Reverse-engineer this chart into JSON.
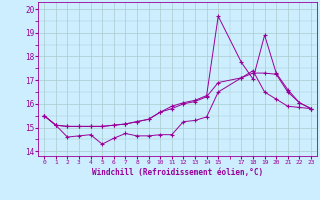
{
  "xlabel": "Windchill (Refroidissement éolien,°C)",
  "bg_color": "#cceeff",
  "grid_color": "#aacccc",
  "line_color": "#990099",
  "x_ticks": [
    0,
    1,
    2,
    3,
    4,
    5,
    6,
    7,
    8,
    9,
    10,
    11,
    12,
    13,
    14,
    15,
    17,
    18,
    19,
    20,
    21,
    22,
    23
  ],
  "x_tick_labels": [
    "0",
    "1",
    "2",
    "3",
    "4",
    "5",
    "6",
    "7",
    "8",
    "9",
    "10",
    "11",
    "12",
    "13",
    "14",
    "15",
    "17",
    "18",
    "19",
    "20",
    "21",
    "22",
    "23"
  ],
  "ylim": [
    13.8,
    20.3
  ],
  "yticks": [
    14,
    15,
    16,
    17,
    18,
    19,
    20
  ],
  "xlim": [
    -0.5,
    23.5
  ],
  "series": [
    {
      "x": [
        0,
        1,
        2,
        3,
        4,
        5,
        6,
        7,
        8,
        9,
        10,
        11,
        12,
        13,
        14,
        15,
        17,
        18,
        19,
        20,
        21,
        22,
        23
      ],
      "y": [
        15.5,
        15.1,
        14.6,
        14.65,
        14.7,
        14.3,
        14.55,
        14.75,
        14.65,
        14.65,
        14.7,
        14.7,
        15.25,
        15.3,
        15.45,
        16.5,
        17.1,
        17.4,
        16.5,
        16.2,
        15.9,
        15.85,
        15.8
      ]
    },
    {
      "x": [
        0,
        1,
        2,
        3,
        4,
        5,
        6,
        7,
        8,
        9,
        10,
        11,
        12,
        13,
        14,
        15,
        17,
        18,
        19,
        20,
        21,
        22,
        23
      ],
      "y": [
        15.5,
        15.1,
        15.05,
        15.05,
        15.05,
        15.05,
        15.1,
        15.15,
        15.25,
        15.35,
        15.65,
        15.8,
        16.0,
        16.1,
        16.3,
        16.9,
        17.1,
        17.3,
        17.3,
        17.25,
        16.5,
        16.05,
        15.8
      ]
    },
    {
      "x": [
        0,
        1,
        2,
        3,
        4,
        5,
        6,
        7,
        8,
        9,
        10,
        11,
        12,
        13,
        14,
        15,
        17,
        18,
        19,
        20,
        21,
        22,
        23
      ],
      "y": [
        15.5,
        15.1,
        15.05,
        15.05,
        15.05,
        15.05,
        15.1,
        15.15,
        15.25,
        15.35,
        15.65,
        15.9,
        16.05,
        16.15,
        16.35,
        19.7,
        17.75,
        17.05,
        18.9,
        17.3,
        16.6,
        16.05,
        15.8
      ]
    }
  ]
}
